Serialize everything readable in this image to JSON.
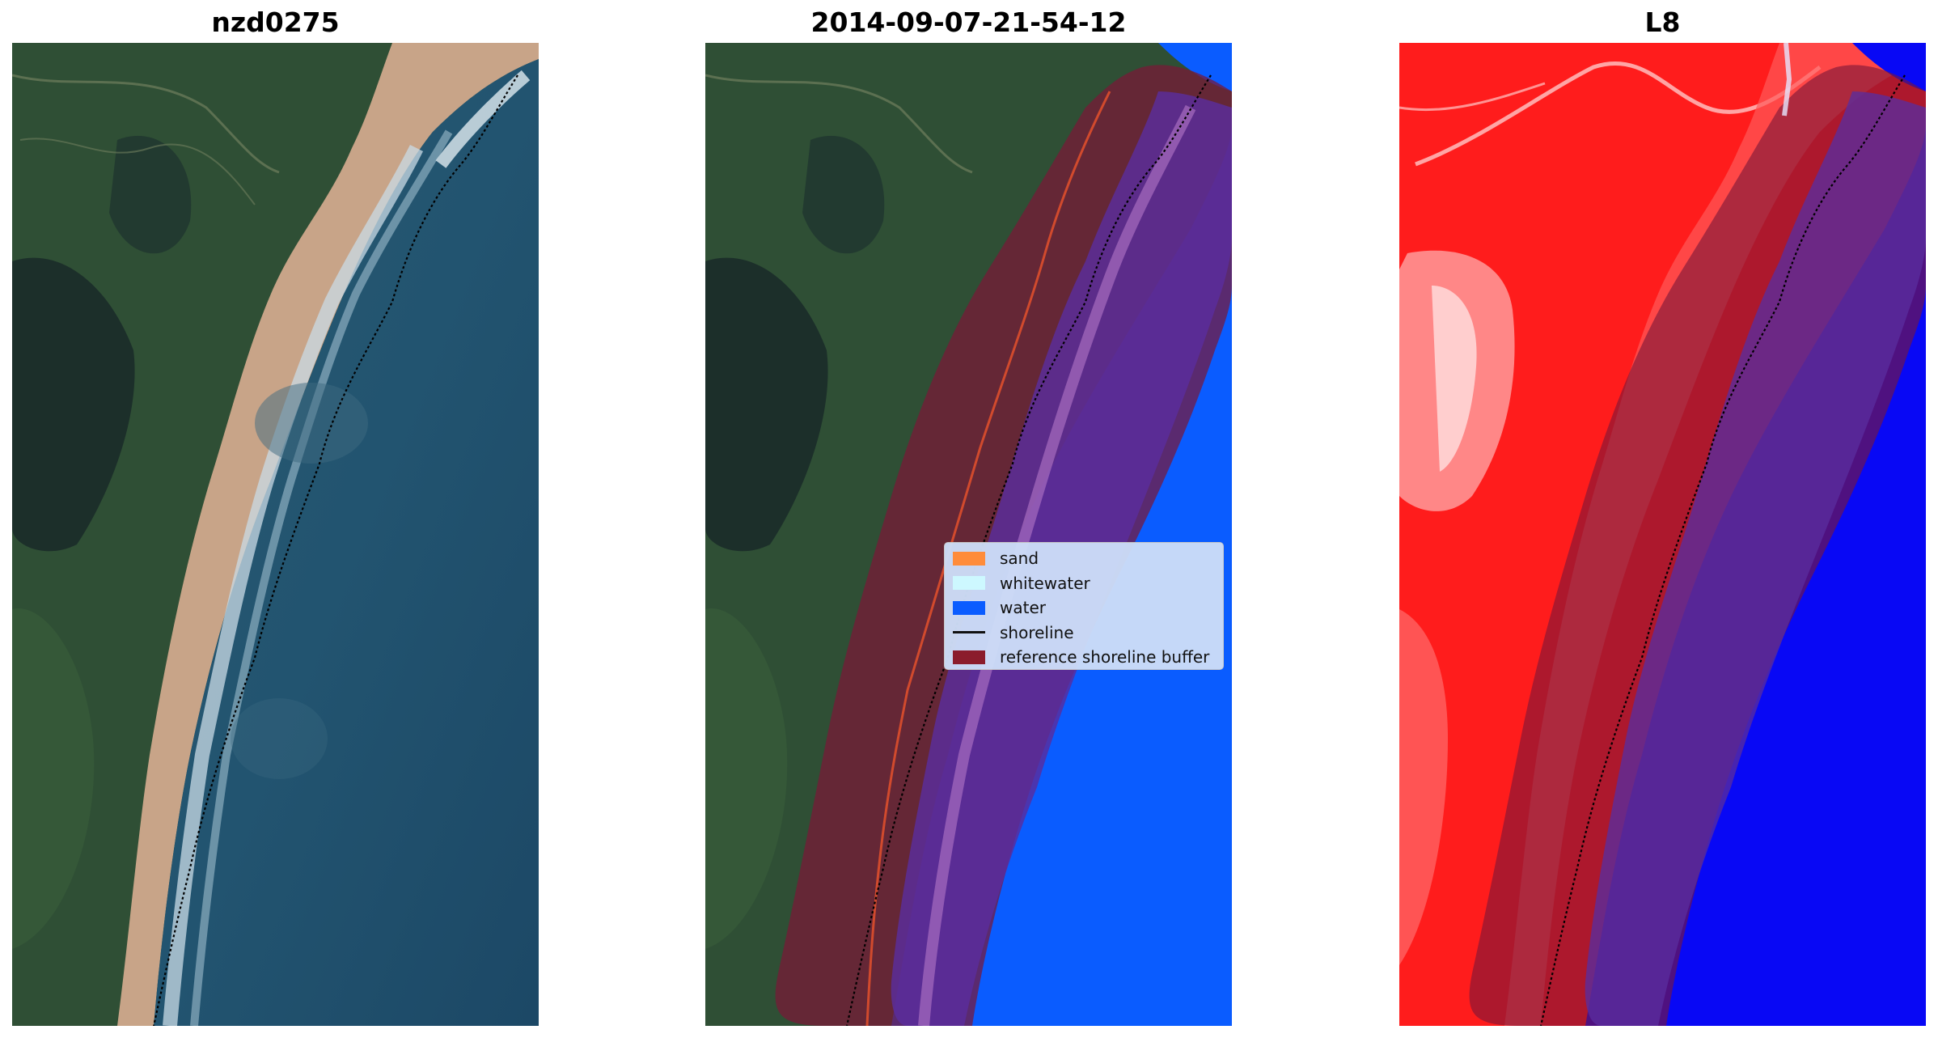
{
  "titles": {
    "left": "nzd0275",
    "middle": "2014-09-07-21-54-12",
    "right": "L8"
  },
  "legend": {
    "items": [
      {
        "label": "sand",
        "color": "#ff8c3a",
        "kind": "patch"
      },
      {
        "label": "whitewater",
        "color": "#cdf8ff",
        "kind": "patch"
      },
      {
        "label": "water",
        "color": "#0a5cff",
        "kind": "patch"
      },
      {
        "label": "shoreline",
        "color": "#111111",
        "kind": "line"
      },
      {
        "label": "reference shoreline buffer",
        "color": "#8b1c2c",
        "kind": "patch"
      }
    ]
  },
  "colors": {
    "land_green": "#2f4f35",
    "dark_forest": "#1c2f2a",
    "beach_sand": "#c8a488",
    "ocean": "#204f6c",
    "surf": "#c9dbe6",
    "classified_water": "#0a5cff",
    "buffer": "#7a1738",
    "purple_overlay": "#5a2d9e",
    "index_red": "#ff1c1c",
    "index_blue": "#0808f5"
  }
}
